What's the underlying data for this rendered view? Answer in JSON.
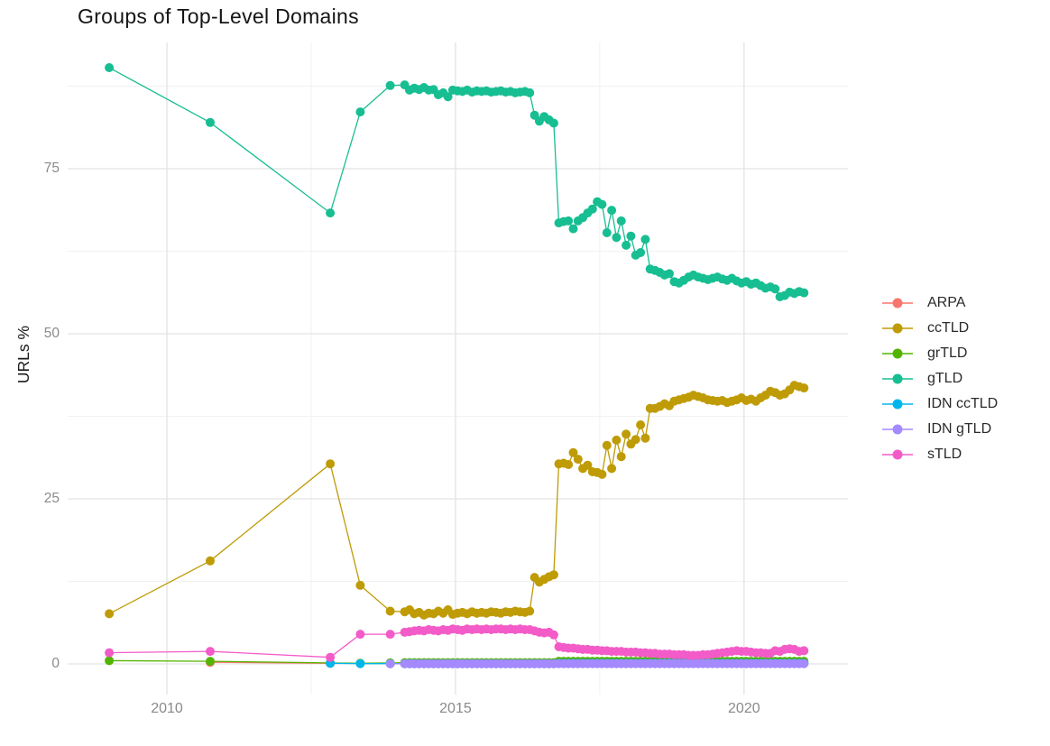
{
  "chart_data": {
    "type": "line",
    "title": "Groups of Top-Level Domains",
    "xlabel": "",
    "ylabel": "URLs %",
    "grid": "on",
    "legend_position": "right",
    "xlim": [
      2008.28,
      2021.8
    ],
    "ylim": [
      -4.64,
      94.13
    ],
    "x_major_ticks": {
      "values": [
        2010,
        2015,
        2020
      ],
      "labels": [
        "2010",
        "2015",
        "2020"
      ]
    },
    "y_major_ticks": {
      "values": [
        0,
        25,
        50,
        75
      ],
      "labels": [
        "0",
        "25",
        "50",
        "75"
      ]
    },
    "x_minor_gridlines": [
      2012.5,
      2017.5
    ],
    "y_minor_gridlines": [
      12.5,
      37.5,
      62.5,
      87.5
    ],
    "series": [
      {
        "name": "ARPA",
        "color": "#F8766D",
        "segments": [
          {
            "points": [
              [
                2010.75,
                0.25
              ],
              [
                2012.83,
                0.08
              ]
            ]
          }
        ]
      },
      {
        "name": "ccTLD",
        "color": "#BF9B06",
        "segments": [
          {
            "points": [
              [
                2009,
                7.6
              ],
              [
                2010.75,
                15.6
              ],
              [
                2012.83,
                30.3
              ],
              [
                2013.35,
                11.9
              ],
              [
                2013.87,
                8.0
              ]
            ]
          },
          {
            "start": 2014.12,
            "step": 0.0833,
            "values": [
              7.9,
              8.2,
              7.6,
              7.8,
              7.4,
              7.7,
              7.6,
              8.0,
              7.7,
              8.2,
              7.5,
              7.7,
              7.8,
              7.6,
              7.9,
              7.7,
              7.8,
              7.7,
              7.9,
              7.8,
              7.7,
              7.9,
              7.8,
              8.0,
              7.9,
              7.8,
              8.0
            ]
          },
          {
            "start": 2016.37,
            "step": 0.0833,
            "values": [
              13.1,
              12.4,
              12.8,
              13.2,
              13.5
            ]
          },
          {
            "start": 2016.79,
            "step": 0.0833,
            "values": [
              30.3,
              30.4,
              30.2,
              32.0,
              31.0,
              29.6,
              30.1,
              29.1,
              29.0,
              28.7,
              33.1,
              29.6,
              33.9,
              31.4,
              34.8,
              33.3,
              34.0,
              36.2,
              34.2,
              38.7,
              38.7,
              39.0,
              39.4,
              39.1,
              39.8,
              40.0,
              40.2,
              40.4,
              40.7,
              40.5,
              40.3,
              40.0,
              39.9,
              39.8,
              39.9,
              39.6,
              39.8,
              40.0,
              40.3,
              39.9,
              40.1,
              39.8,
              40.3,
              40.7,
              41.3,
              41.1,
              40.7,
              40.9,
              41.5,
              42.2,
              42.0,
              41.8
            ]
          }
        ]
      },
      {
        "name": "grTLD",
        "color": "#53B400",
        "segments": [
          {
            "points": [
              [
                2009,
                0.5
              ],
              [
                2010.75,
                0.4
              ],
              [
                2012.83,
                0.15
              ],
              [
                2013.35,
                0.1
              ],
              [
                2013.87,
                0.15
              ]
            ]
          },
          {
            "start": 2014.12,
            "step": 0.0833,
            "n": 27,
            "const": 0.2
          },
          {
            "start": 2016.37,
            "step": 0.0833,
            "n": 5,
            "const": 0.2
          },
          {
            "start": 2016.79,
            "step": 0.0833,
            "n": 52,
            "const": 0.4
          }
        ]
      },
      {
        "name": "gTLD",
        "color": "#17BE92",
        "segments": [
          {
            "points": [
              [
                2009,
                90.3
              ],
              [
                2010.75,
                82.0
              ],
              [
                2012.83,
                68.3
              ],
              [
                2013.35,
                83.6
              ],
              [
                2013.87,
                87.6
              ]
            ]
          },
          {
            "start": 2014.12,
            "step": 0.0833,
            "values": [
              87.7,
              86.9,
              87.2,
              87.0,
              87.3,
              86.9,
              87.0,
              86.2,
              86.5,
              85.9,
              86.9,
              86.8,
              86.7,
              86.9,
              86.6,
              86.8,
              86.7,
              86.8,
              86.6,
              86.7,
              86.8,
              86.6,
              86.7,
              86.5,
              86.6,
              86.7,
              86.5
            ]
          },
          {
            "start": 2016.37,
            "step": 0.0833,
            "values": [
              83.1,
              82.2,
              82.9,
              82.4,
              81.9
            ]
          },
          {
            "start": 2016.79,
            "step": 0.0833,
            "values": [
              66.8,
              67.0,
              67.1,
              65.9,
              67.1,
              67.6,
              68.3,
              68.9,
              70.0,
              69.6,
              65.3,
              68.7,
              64.6,
              67.1,
              63.4,
              64.8,
              61.9,
              62.3,
              64.3,
              59.8,
              59.6,
              59.3,
              58.9,
              59.1,
              57.9,
              57.7,
              58.1,
              58.6,
              58.9,
              58.6,
              58.4,
              58.2,
              58.4,
              58.6,
              58.3,
              58.1,
              58.4,
              58.0,
              57.7,
              57.9,
              57.5,
              57.7,
              57.3,
              56.9,
              57.1,
              56.8,
              55.6,
              55.8,
              56.3,
              56.1,
              56.4,
              56.2
            ]
          }
        ]
      },
      {
        "name": "IDN ccTLD",
        "color": "#00B6EB",
        "segments": [
          {
            "points": [
              [
                2012.83,
                0.1
              ],
              [
                2013.35,
                0.05
              ],
              [
                2013.87,
                0.05
              ]
            ]
          },
          {
            "start": 2014.12,
            "step": 0.0833,
            "n": 27,
            "const": 0.05
          },
          {
            "start": 2016.37,
            "step": 0.0833,
            "n": 5,
            "const": 0.05
          },
          {
            "start": 2016.79,
            "step": 0.0833,
            "n": 52,
            "const": 0.1
          }
        ]
      },
      {
        "name": "IDN gTLD",
        "color": "#A58AFF",
        "segments": [
          {
            "points": [
              [
                2013.87,
                0.02
              ]
            ]
          },
          {
            "start": 2014.12,
            "step": 0.0833,
            "n": 27,
            "const": 0.02
          },
          {
            "start": 2016.37,
            "step": 0.0833,
            "n": 5,
            "const": 0.02
          },
          {
            "start": 2016.79,
            "step": 0.0833,
            "n": 52,
            "const": 0.05
          }
        ]
      },
      {
        "name": "sTLD",
        "color": "#F35BC8",
        "segments": [
          {
            "points": [
              [
                2009,
                1.7
              ],
              [
                2010.75,
                1.9
              ],
              [
                2012.83,
                1.0
              ],
              [
                2013.35,
                4.5
              ],
              [
                2013.87,
                4.5
              ]
            ]
          },
          {
            "start": 2014.12,
            "step": 0.0833,
            "values": [
              4.8,
              4.9,
              5.0,
              5.1,
              5.0,
              5.2,
              5.1,
              5.0,
              5.2,
              5.1,
              5.3,
              5.2,
              5.1,
              5.3,
              5.2,
              5.3,
              5.2,
              5.3,
              5.2,
              5.3,
              5.3,
              5.2,
              5.3,
              5.2,
              5.3,
              5.2,
              5.2
            ]
          },
          {
            "start": 2016.37,
            "step": 0.0833,
            "values": [
              5.0,
              4.8,
              4.7,
              4.8,
              4.4
            ]
          },
          {
            "start": 2016.79,
            "step": 0.0833,
            "values": [
              2.6,
              2.5,
              2.4,
              2.4,
              2.3,
              2.2,
              2.2,
              2.1,
              2.1,
              2.0,
              2.0,
              1.9,
              1.9,
              1.9,
              1.8,
              1.8,
              1.8,
              1.7,
              1.7,
              1.6,
              1.6,
              1.5,
              1.5,
              1.5,
              1.4,
              1.4,
              1.4,
              1.3,
              1.3,
              1.3,
              1.4,
              1.4,
              1.5,
              1.6,
              1.7,
              1.8,
              1.9,
              2.0,
              1.9,
              1.9,
              1.8,
              1.7,
              1.7,
              1.6,
              1.6,
              2.0,
              1.9,
              2.2,
              2.3,
              2.2,
              1.9,
              2.0
            ]
          }
        ]
      }
    ]
  }
}
